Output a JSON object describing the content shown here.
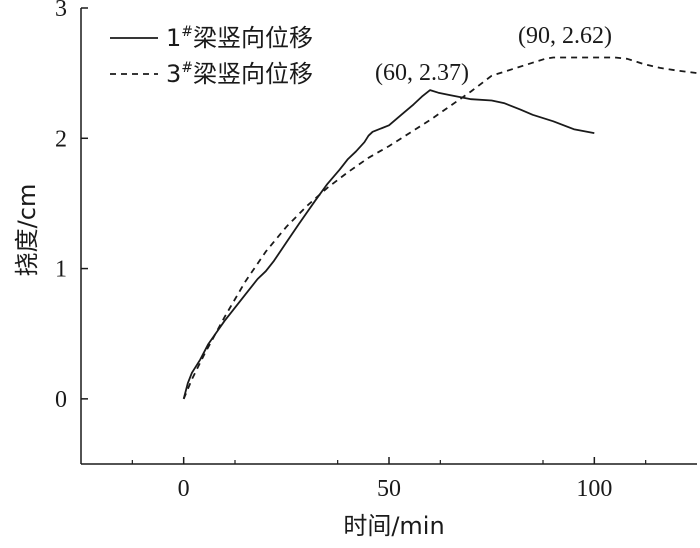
{
  "chart_data": {
    "type": "line",
    "xlabel": "时间/min",
    "ylabel": "挠度/cm",
    "xlim": [
      -25,
      125
    ],
    "ylim": [
      -0.5,
      3
    ],
    "xticks": [
      0,
      50,
      100
    ],
    "yticks": [
      0,
      1,
      2,
      3
    ],
    "x_tick_labels": [
      "0",
      "50",
      "100"
    ],
    "y_tick_labels": [
      "0",
      "1",
      "2",
      "3"
    ],
    "grid": false,
    "legend_position": "top-left",
    "series": [
      {
        "name": "1#梁竖向位移",
        "legend_prefix": "1",
        "legend_sup": "#",
        "legend_suffix": "梁竖向位移",
        "style": "solid",
        "color": "#1a1a1a",
        "x": [
          0,
          1,
          2,
          4,
          6,
          8,
          10,
          12,
          15,
          18,
          20,
          22,
          25,
          28,
          30,
          32,
          35,
          38,
          40,
          42,
          44,
          45,
          46,
          50,
          53,
          56,
          58,
          60,
          62,
          65,
          70,
          75,
          78,
          82,
          85,
          90,
          95,
          100
        ],
        "y": [
          0,
          0.12,
          0.2,
          0.3,
          0.42,
          0.51,
          0.6,
          0.68,
          0.8,
          0.92,
          0.98,
          1.06,
          1.2,
          1.34,
          1.43,
          1.52,
          1.65,
          1.76,
          1.84,
          1.9,
          1.97,
          2.02,
          2.05,
          2.1,
          2.18,
          2.26,
          2.32,
          2.37,
          2.35,
          2.33,
          2.3,
          2.29,
          2.27,
          2.22,
          2.18,
          2.13,
          2.07,
          2.04
        ]
      },
      {
        "name": "3#梁竖向位移",
        "legend_prefix": "3",
        "legend_sup": "#",
        "legend_suffix": "梁竖向位移",
        "style": "dashed",
        "color": "#1a1a1a",
        "x": [
          0,
          2,
          5,
          10,
          15,
          20,
          25,
          30,
          35,
          40,
          45,
          50,
          55,
          60,
          65,
          70,
          75,
          80,
          85,
          88,
          90,
          95,
          100,
          105,
          108,
          112,
          116,
          120,
          125
        ],
        "y": [
          0,
          0.15,
          0.34,
          0.63,
          0.9,
          1.13,
          1.32,
          1.48,
          1.62,
          1.74,
          1.85,
          1.94,
          2.04,
          2.14,
          2.25,
          2.36,
          2.48,
          2.53,
          2.58,
          2.61,
          2.62,
          2.62,
          2.62,
          2.62,
          2.61,
          2.57,
          2.54,
          2.52,
          2.5
        ]
      }
    ],
    "annotations": [
      {
        "text": "(60, 2.37)",
        "x": 60,
        "y": 2.37
      },
      {
        "text": "(90, 2.62)",
        "x": 90,
        "y": 2.62
      }
    ]
  }
}
